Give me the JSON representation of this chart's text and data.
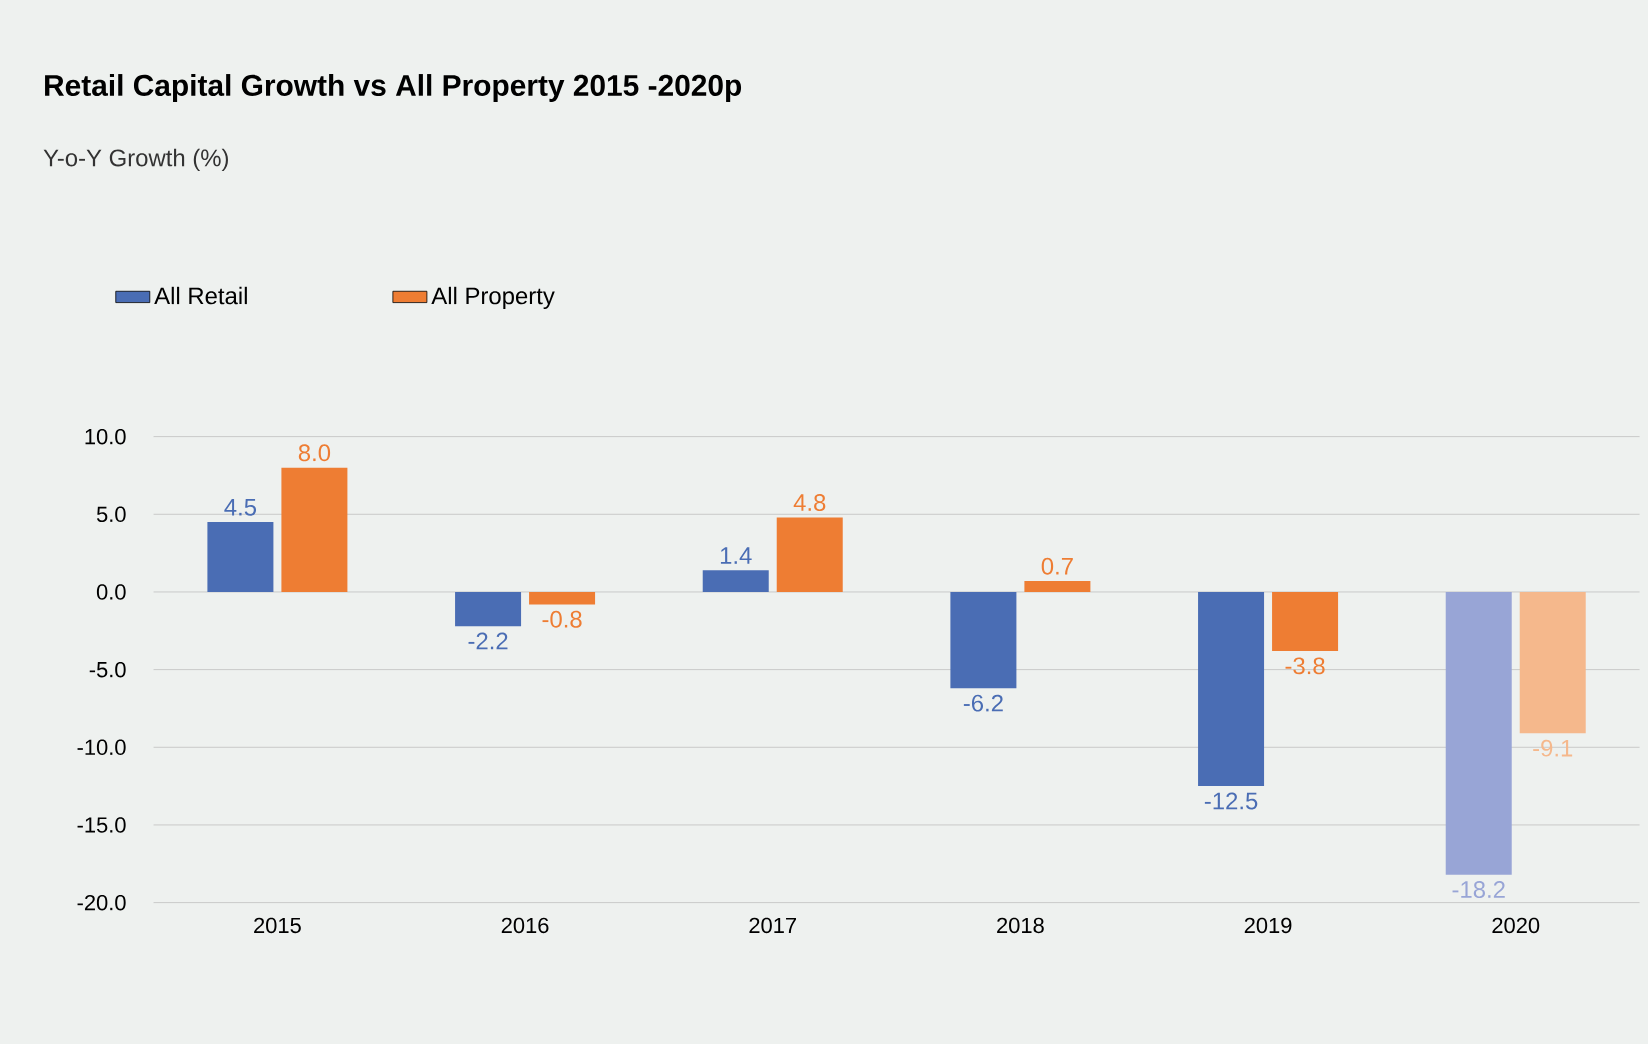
{
  "chart_data": {
    "type": "bar",
    "title": "Retail Capital Growth vs  All Property 2015 -2020p",
    "subtitle": "Y-o-Y Growth (%)",
    "categories": [
      "2015",
      "2016",
      "2017",
      "2018",
      "2019",
      "2020"
    ],
    "series": [
      {
        "name": "All Retail",
        "color": "#4a6db4",
        "colors": [
          "#4a6db4",
          "#4a6db4",
          "#4a6db4",
          "#4a6db4",
          "#4a6db4",
          "#98a5d6"
        ],
        "values": [
          4.5,
          -2.2,
          1.4,
          -6.2,
          -12.5,
          -18.2
        ],
        "value_labels": [
          "4.5",
          "-2.2",
          "1.4",
          "-6.2",
          "-12.5",
          "-18.2"
        ]
      },
      {
        "name": "All Property",
        "color": "#ee7d33",
        "colors": [
          "#ee7d33",
          "#ee7d33",
          "#ee7d33",
          "#ee7d33",
          "#ee7d33",
          "#f5b88c"
        ],
        "values": [
          8.0,
          -0.8,
          4.8,
          0.7,
          -3.8,
          -9.1
        ],
        "value_labels": [
          "8.0",
          "-0.8",
          "4.8",
          "0.7",
          "-3.8",
          "-9.1"
        ]
      }
    ],
    "ylim": [
      -20,
      10
    ],
    "yticks": [
      {
        "value": 10,
        "label": "10.0"
      },
      {
        "value": 5,
        "label": "5.0"
      },
      {
        "value": 0,
        "label": "0.0"
      },
      {
        "value": -5,
        "label": "-5.0"
      },
      {
        "value": -10,
        "label": "-10.0"
      },
      {
        "value": -15,
        "label": "-15.0"
      },
      {
        "value": -20,
        "label": "-20.0"
      }
    ],
    "grid": "y",
    "legend": "top left"
  }
}
